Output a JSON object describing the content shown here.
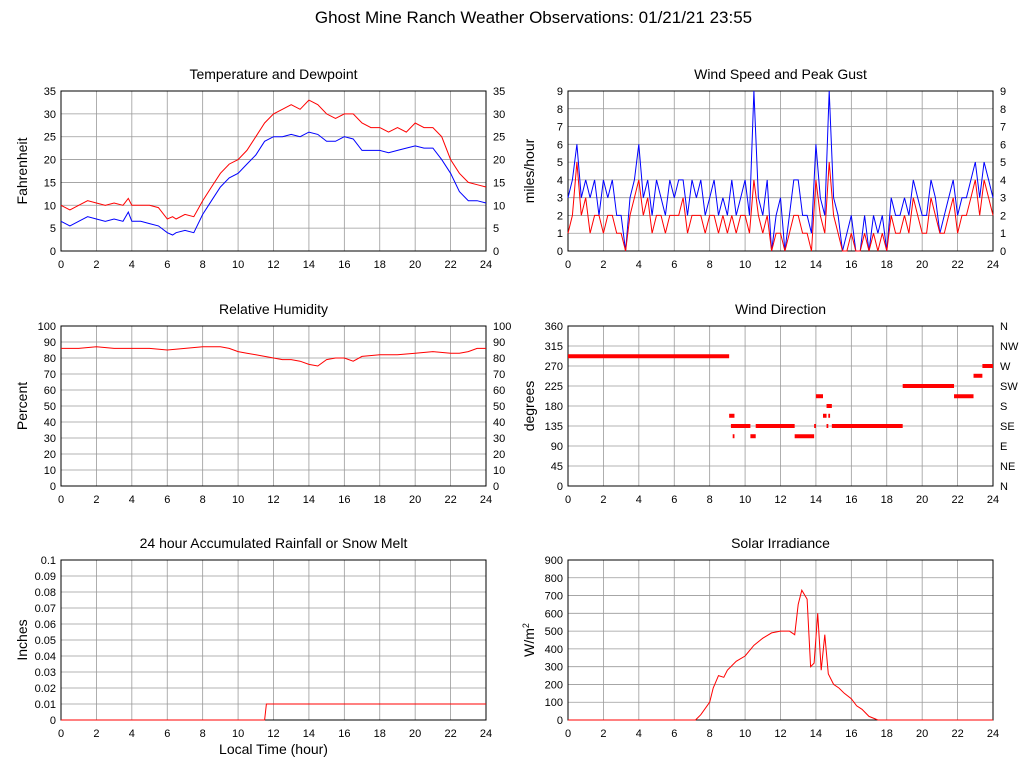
{
  "page": {
    "title": "Ghost Mine Ranch Weather Observations: 01/21/21 23:55"
  },
  "chart_data": [
    {
      "id": "temp",
      "type": "line",
      "title": "Temperature and Dewpoint",
      "ylabel": "Fahrenheit",
      "xlabel": "",
      "xlim": [
        0,
        24
      ],
      "ylim": [
        0,
        35
      ],
      "xticks": [
        "0",
        "2",
        "4",
        "6",
        "8",
        "10",
        "12",
        "14",
        "16",
        "18",
        "20",
        "22",
        "24"
      ],
      "yticks": [
        "0",
        "5",
        "10",
        "15",
        "20",
        "25",
        "30",
        "35"
      ],
      "yticks_right": [
        "0",
        "5",
        "10",
        "15",
        "20",
        "25",
        "30",
        "35"
      ],
      "grid": true,
      "series": [
        {
          "color": "#ff0000",
          "x": [
            0,
            0.5,
            1,
            1.5,
            2,
            2.5,
            3,
            3.5,
            3.8,
            4,
            4.5,
            5,
            5.5,
            6,
            6.3,
            6.5,
            7,
            7.5,
            8,
            8.5,
            9,
            9.5,
            10,
            10.5,
            11,
            11.5,
            12,
            12.5,
            13,
            13.5,
            14,
            14.5,
            15,
            15.5,
            16,
            16.5,
            17,
            17.5,
            18,
            18.5,
            19,
            19.5,
            20,
            20.5,
            21,
            21.5,
            22,
            22.5,
            23,
            23.5,
            24
          ],
          "y": [
            10,
            9,
            10,
            11,
            10.5,
            10,
            10.5,
            10,
            11.5,
            10,
            10,
            10,
            9.5,
            7,
            7.5,
            7,
            8,
            7.5,
            11,
            14,
            17,
            19,
            20,
            22,
            25,
            28,
            30,
            31,
            32,
            31,
            33,
            32,
            30,
            29,
            30,
            30,
            28,
            27,
            27,
            26,
            27,
            26,
            28,
            27,
            27,
            25,
            20,
            17,
            15,
            14.5,
            14
          ]
        },
        {
          "color": "#0000ff",
          "x": [
            0,
            0.5,
            1,
            1.5,
            2,
            2.5,
            3,
            3.5,
            3.8,
            4,
            4.5,
            5,
            5.5,
            6,
            6.3,
            6.5,
            7,
            7.5,
            8,
            8.5,
            9,
            9.5,
            10,
            10.5,
            11,
            11.5,
            12,
            12.5,
            13,
            13.5,
            14,
            14.5,
            15,
            15.5,
            16,
            16.5,
            17,
            17.5,
            18,
            18.5,
            19,
            19.5,
            20,
            20.5,
            21,
            21.5,
            22,
            22.5,
            23,
            23.5,
            24
          ],
          "y": [
            6.5,
            5.5,
            6.5,
            7.5,
            7,
            6.5,
            7,
            6.5,
            8.5,
            6.5,
            6.5,
            6,
            5.5,
            4,
            3.5,
            4,
            4.5,
            4,
            8,
            11,
            14,
            16,
            17,
            19,
            21,
            24,
            25,
            25,
            25.5,
            25,
            26,
            25.5,
            24,
            24,
            25,
            24.5,
            22,
            22,
            22,
            21.5,
            22,
            22.5,
            23,
            22.5,
            22.5,
            20,
            17,
            13,
            11,
            11,
            10.5
          ]
        }
      ]
    },
    {
      "id": "wind",
      "type": "line",
      "title": "Wind Speed and Peak Gust",
      "ylabel": "miles/hour",
      "xlabel": "",
      "xlim": [
        0,
        24
      ],
      "ylim": [
        0,
        9
      ],
      "xticks": [
        "0",
        "2",
        "4",
        "6",
        "8",
        "10",
        "12",
        "14",
        "16",
        "18",
        "20",
        "22",
        "24"
      ],
      "yticks": [
        "0",
        "1",
        "2",
        "3",
        "4",
        "5",
        "6",
        "7",
        "8",
        "9"
      ],
      "yticks_right": [
        "0",
        "1",
        "2",
        "3",
        "4",
        "5",
        "6",
        "7",
        "8",
        "9"
      ],
      "grid": true,
      "series": [
        {
          "color": "#0000ff",
          "x": [
            0,
            0.25,
            0.5,
            0.75,
            1,
            1.25,
            1.5,
            1.75,
            2,
            2.25,
            2.5,
            2.75,
            3,
            3.25,
            3.5,
            3.75,
            4,
            4.25,
            4.5,
            4.75,
            5,
            5.25,
            5.5,
            5.75,
            6,
            6.25,
            6.5,
            6.75,
            7,
            7.25,
            7.5,
            7.75,
            8,
            8.25,
            8.5,
            8.75,
            9,
            9.25,
            9.5,
            9.75,
            10,
            10.25,
            10.5,
            10.75,
            11,
            11.25,
            11.5,
            11.75,
            12,
            12.25,
            12.5,
            12.75,
            13,
            13.25,
            13.5,
            13.75,
            14,
            14.25,
            14.5,
            14.75,
            15,
            15.25,
            15.5,
            15.75,
            16,
            16.25,
            16.5,
            16.75,
            17,
            17.25,
            17.5,
            17.75,
            18,
            18.25,
            18.5,
            18.75,
            19,
            19.25,
            19.5,
            19.75,
            20,
            20.25,
            20.5,
            20.75,
            21,
            21.25,
            21.5,
            21.75,
            22,
            22.25,
            22.5,
            22.75,
            23,
            23.25,
            23.5,
            23.75,
            24
          ],
          "y": [
            3,
            4,
            6,
            3,
            4,
            3,
            4,
            2,
            4,
            3,
            4,
            2,
            2,
            0,
            3,
            4,
            6,
            3,
            4,
            2,
            4,
            3,
            2,
            4,
            3,
            4,
            4,
            2,
            4,
            3,
            4,
            2,
            3,
            4,
            2,
            3,
            2,
            4,
            2,
            3,
            4,
            2,
            9,
            3,
            2,
            4,
            0,
            2,
            3,
            0,
            2,
            4,
            4,
            2,
            2,
            1,
            6,
            3,
            2,
            9,
            3,
            2,
            0,
            1,
            2,
            0,
            0,
            2,
            0,
            2,
            1,
            2,
            0,
            3,
            2,
            2,
            3,
            2,
            4,
            3,
            2,
            2,
            4,
            3,
            1,
            2,
            3,
            4,
            2,
            3,
            3,
            4,
            5,
            3,
            5,
            4,
            3
          ]
        },
        {
          "color": "#ff0000",
          "x": [
            0,
            0.25,
            0.5,
            0.75,
            1,
            1.25,
            1.5,
            1.75,
            2,
            2.25,
            2.5,
            2.75,
            3,
            3.25,
            3.5,
            3.75,
            4,
            4.25,
            4.5,
            4.75,
            5,
            5.25,
            5.5,
            5.75,
            6,
            6.25,
            6.5,
            6.75,
            7,
            7.25,
            7.5,
            7.75,
            8,
            8.25,
            8.5,
            8.75,
            9,
            9.25,
            9.5,
            9.75,
            10,
            10.25,
            10.5,
            10.75,
            11,
            11.25,
            11.5,
            11.75,
            12,
            12.25,
            12.5,
            12.75,
            13,
            13.25,
            13.5,
            13.75,
            14,
            14.25,
            14.5,
            14.75,
            15,
            15.25,
            15.5,
            15.75,
            16,
            16.25,
            16.5,
            16.75,
            17,
            17.25,
            17.5,
            17.75,
            18,
            18.25,
            18.5,
            18.75,
            19,
            19.25,
            19.5,
            19.75,
            20,
            20.25,
            20.5,
            20.75,
            21,
            21.25,
            21.5,
            21.75,
            22,
            22.25,
            22.5,
            22.75,
            23,
            23.25,
            23.5,
            23.75,
            24
          ],
          "y": [
            1,
            2,
            5,
            2,
            3,
            1,
            2,
            2,
            1,
            2,
            2,
            1,
            1,
            0,
            2,
            3,
            4,
            2,
            3,
            1,
            2,
            2,
            1,
            2,
            2,
            2,
            3,
            1,
            2,
            2,
            2,
            1,
            2,
            2,
            1,
            2,
            1,
            2,
            1,
            2,
            2,
            1,
            4,
            2,
            1,
            2,
            0,
            1,
            1,
            0,
            1,
            2,
            2,
            1,
            1,
            0,
            4,
            2,
            1,
            5,
            2,
            1,
            0,
            0,
            1,
            0,
            0,
            1,
            0,
            1,
            0,
            1,
            0,
            2,
            1,
            1,
            2,
            1,
            3,
            2,
            1,
            1,
            3,
            2,
            1,
            1,
            2,
            3,
            1,
            2,
            2,
            3,
            4,
            2,
            4,
            3,
            2
          ]
        }
      ]
    },
    {
      "id": "rh",
      "type": "line",
      "title": "Relative Humidity",
      "ylabel": "Percent",
      "xlabel": "",
      "xlim": [
        0,
        24
      ],
      "ylim": [
        0,
        100
      ],
      "xticks": [
        "0",
        "2",
        "4",
        "6",
        "8",
        "10",
        "12",
        "14",
        "16",
        "18",
        "20",
        "22",
        "24"
      ],
      "yticks": [
        "0",
        "10",
        "20",
        "30",
        "40",
        "50",
        "60",
        "70",
        "80",
        "90",
        "100"
      ],
      "yticks_right": [
        "0",
        "10",
        "20",
        "30",
        "40",
        "50",
        "60",
        "70",
        "80",
        "90",
        "100"
      ],
      "grid": true,
      "series": [
        {
          "color": "#ff0000",
          "x": [
            0,
            1,
            2,
            3,
            4,
            5,
            6,
            7,
            8,
            9,
            9.5,
            10,
            10.5,
            11,
            11.5,
            12,
            12.5,
            13,
            13.5,
            14,
            14.5,
            15,
            15.5,
            16,
            16.5,
            17,
            18,
            19,
            20,
            21,
            22,
            22.5,
            23,
            23.5,
            24
          ],
          "y": [
            86,
            86,
            87,
            86,
            86,
            86,
            85,
            86,
            87,
            87,
            86,
            84,
            83,
            82,
            81,
            80,
            79,
            79,
            78,
            76,
            75,
            79,
            80,
            80,
            78,
            81,
            82,
            82,
            83,
            84,
            83,
            83,
            84,
            86,
            86
          ]
        }
      ]
    },
    {
      "id": "wdir",
      "type": "scatter",
      "title": "Wind Direction",
      "ylabel": "degrees",
      "xlabel": "",
      "xlim": [
        0,
        24
      ],
      "ylim": [
        0,
        360
      ],
      "xticks": [
        "0",
        "2",
        "4",
        "6",
        "8",
        "10",
        "12",
        "14",
        "16",
        "18",
        "20",
        "22",
        "24"
      ],
      "yticks": [
        "0",
        "45",
        "90",
        "135",
        "180",
        "225",
        "270",
        "315",
        "360"
      ],
      "yticks_right": [
        "N",
        "NE",
        "E",
        "SE",
        "S",
        "SW",
        "W",
        "NW",
        "N"
      ],
      "grid": true,
      "segments": [
        {
          "x1": 0,
          "x2": 9.1,
          "y": 292
        },
        {
          "x1": 9.1,
          "x2": 9.4,
          "y": 158
        },
        {
          "x1": 9.2,
          "x2": 10.3,
          "y": 135
        },
        {
          "x1": 9.3,
          "x2": 9.4,
          "y": 112
        },
        {
          "x1": 10.3,
          "x2": 10.6,
          "y": 112
        },
        {
          "x1": 10.6,
          "x2": 12.8,
          "y": 135
        },
        {
          "x1": 12.8,
          "x2": 13.9,
          "y": 112
        },
        {
          "x1": 13.9,
          "x2": 14.0,
          "y": 135
        },
        {
          "x1": 14.0,
          "x2": 14.4,
          "y": 202
        },
        {
          "x1": 14.4,
          "x2": 14.6,
          "y": 158
        },
        {
          "x1": 14.6,
          "x2": 14.9,
          "y": 180
        },
        {
          "x1": 14.7,
          "x2": 14.8,
          "y": 158
        },
        {
          "x1": 14.6,
          "x2": 14.7,
          "y": 135
        },
        {
          "x1": 14.9,
          "x2": 18.9,
          "y": 135
        },
        {
          "x1": 18.9,
          "x2": 21.8,
          "y": 225
        },
        {
          "x1": 21.8,
          "x2": 22.9,
          "y": 202
        },
        {
          "x1": 22.9,
          "x2": 23.4,
          "y": 248
        },
        {
          "x1": 23.4,
          "x2": 24.0,
          "y": 270
        }
      ]
    },
    {
      "id": "rain",
      "type": "line",
      "title": "24 hour Accumulated Rainfall or Snow Melt",
      "ylabel": "Inches",
      "xlabel": "Local Time (hour)",
      "xlim": [
        0,
        24
      ],
      "ylim": [
        0,
        0.1
      ],
      "xticks": [
        "0",
        "2",
        "4",
        "6",
        "8",
        "10",
        "12",
        "14",
        "16",
        "18",
        "20",
        "22",
        "24"
      ],
      "yticks": [
        "0",
        "0.01",
        "0.02",
        "0.03",
        "0.04",
        "0.05",
        "0.06",
        "0.07",
        "0.08",
        "0.09",
        "0.1"
      ],
      "yticks_right": [],
      "grid": true,
      "series": [
        {
          "color": "#ff0000",
          "x": [
            0,
            11.5,
            11.6,
            24
          ],
          "y": [
            0,
            0,
            0.01,
            0.01
          ]
        }
      ]
    },
    {
      "id": "solar",
      "type": "line",
      "title": "Solar Irradiance",
      "ylabel": "W/m2",
      "xlabel": "",
      "xlim": [
        0,
        24
      ],
      "ylim": [
        0,
        900
      ],
      "xticks": [
        "0",
        "2",
        "4",
        "6",
        "8",
        "10",
        "12",
        "14",
        "16",
        "18",
        "20",
        "22",
        "24"
      ],
      "yticks": [
        "0",
        "100",
        "200",
        "300",
        "400",
        "500",
        "600",
        "700",
        "800",
        "900"
      ],
      "yticks_right": [],
      "grid": true,
      "series": [
        {
          "color": "#ff0000",
          "x": [
            0,
            7.2,
            7.5,
            8,
            8.2,
            8.5,
            8.8,
            9,
            9.5,
            10,
            10.5,
            11,
            11.5,
            12,
            12.5,
            12.8,
            13,
            13.2,
            13.5,
            13.7,
            13.9,
            14.1,
            14.3,
            14.5,
            14.7,
            15,
            15.3,
            15.6,
            16,
            16.3,
            16.6,
            17,
            17.5,
            18,
            24
          ],
          "y": [
            0,
            0,
            30,
            100,
            180,
            250,
            240,
            280,
            330,
            360,
            420,
            460,
            490,
            500,
            500,
            480,
            650,
            730,
            680,
            300,
            320,
            600,
            280,
            480,
            260,
            200,
            180,
            150,
            120,
            80,
            60,
            20,
            0,
            0,
            0
          ]
        }
      ]
    }
  ]
}
